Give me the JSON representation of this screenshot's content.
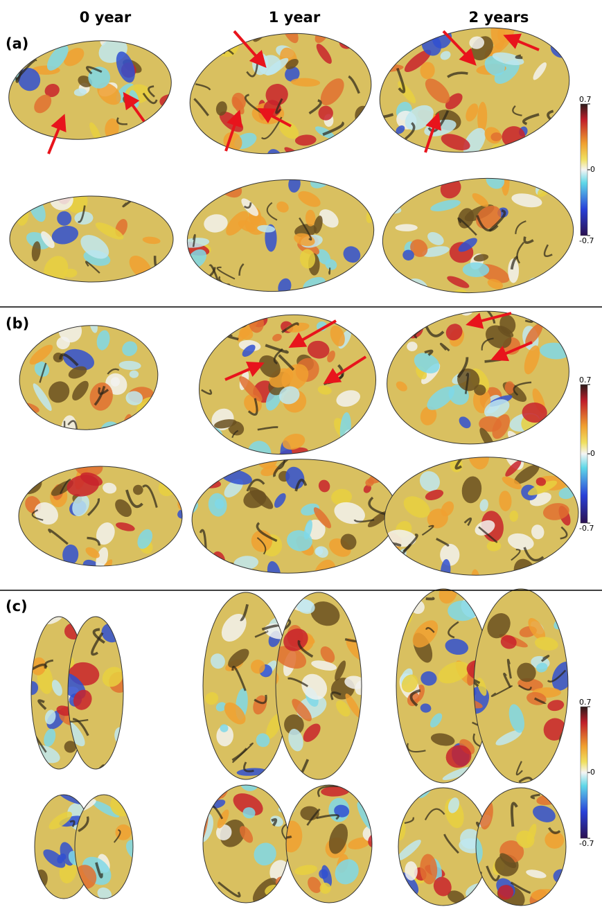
{
  "column_headers": [
    "0 year",
    "1 year",
    "2 years"
  ],
  "panels": [
    {
      "label": "(a)",
      "colorbar": {
        "ticks": [
          0.7,
          0,
          -0.7
        ]
      }
    },
    {
      "label": "(b)",
      "colorbar": {
        "ticks": [
          0.7,
          0,
          -0.7
        ]
      }
    },
    {
      "label": "(c)",
      "colorbar": {
        "ticks": [
          0.7,
          0,
          -0.7
        ]
      }
    }
  ]
}
